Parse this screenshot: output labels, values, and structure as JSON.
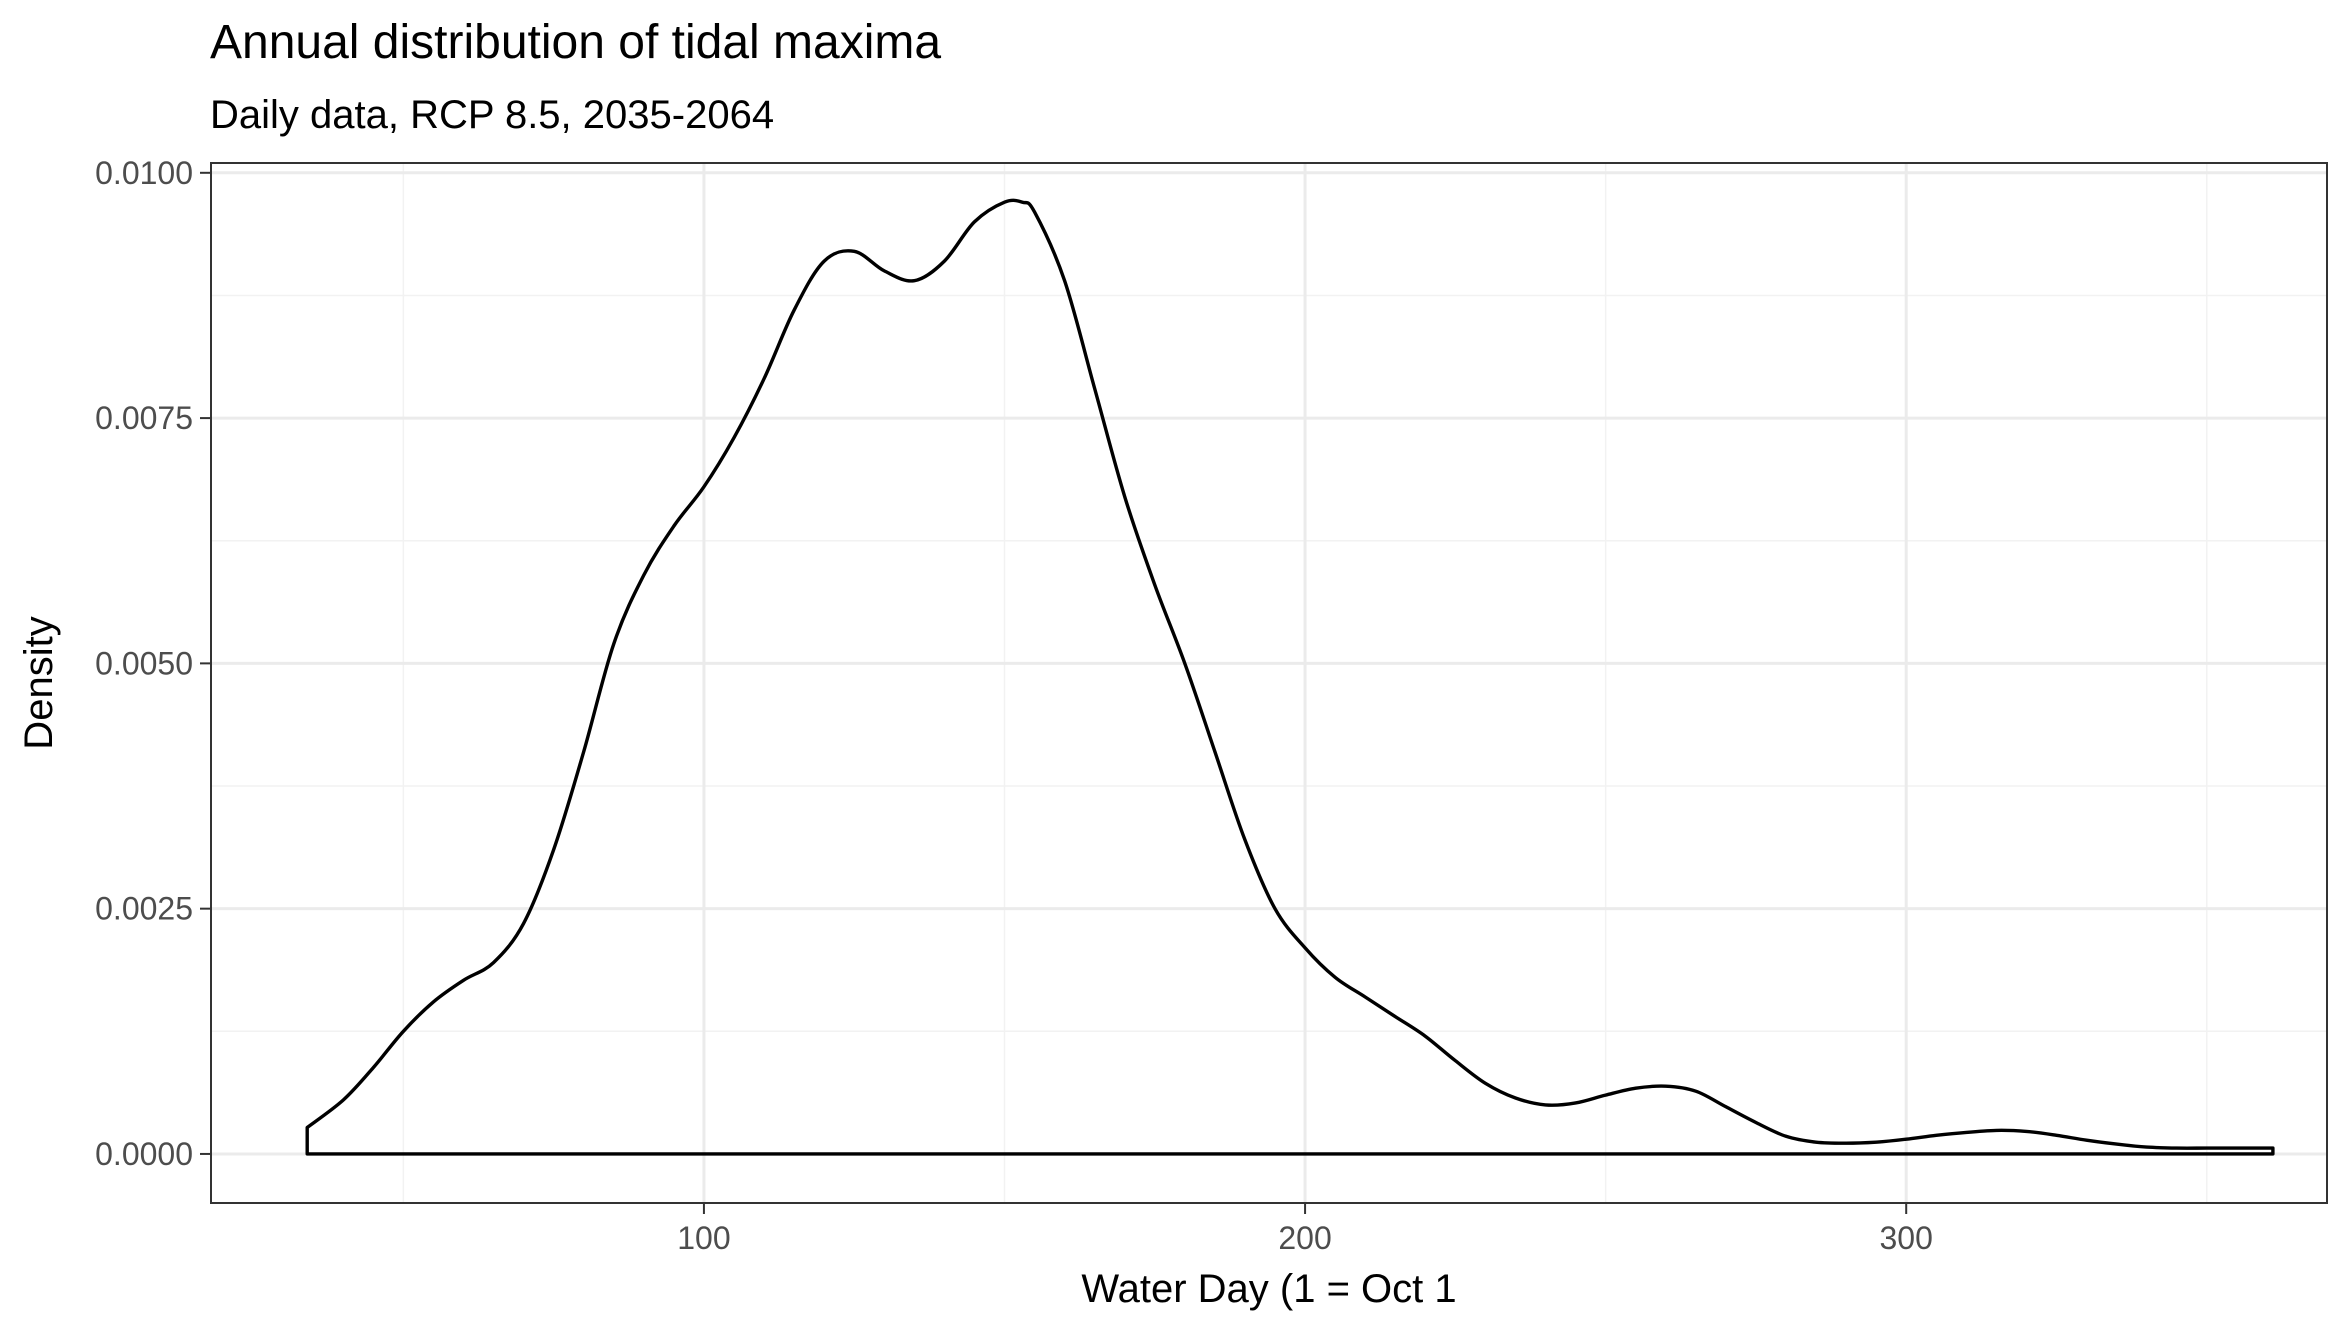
{
  "chart_data": {
    "type": "area",
    "title": "Annual distribution of tidal maxima",
    "subtitle": "Daily data, RCP 8.5, 2035-2064",
    "xlabel": "Water Day (1 = Oct 1",
    "ylabel": "Density",
    "xlim": [
      18,
      370
    ],
    "ylim": [
      -0.0005,
      0.0101
    ],
    "x_ticks": [
      100,
      200,
      300
    ],
    "x_tick_labels": [
      "100",
      "200",
      "300"
    ],
    "x_minor_ticks": [
      50,
      150,
      250,
      350
    ],
    "y_ticks": [
      0,
      0.0025,
      0.005,
      0.0075,
      0.01
    ],
    "y_tick_labels": [
      "0.0000",
      "0.0025",
      "0.0050",
      "0.0075",
      "0.0100"
    ],
    "y_minor_ticks": [
      0.00125,
      0.00375,
      0.00625,
      0.00875
    ],
    "grid": true,
    "legend": "none",
    "fill": "none",
    "line_color": "#000000",
    "x": [
      34,
      40,
      45,
      50,
      55,
      60,
      65,
      70,
      75,
      80,
      85,
      90,
      95,
      100,
      105,
      110,
      115,
      120,
      125,
      130,
      135,
      140,
      145,
      150,
      153,
      155,
      160,
      165,
      170,
      175,
      180,
      185,
      190,
      195,
      200,
      205,
      210,
      215,
      220,
      225,
      230,
      235,
      240,
      245,
      250,
      255,
      260,
      265,
      270,
      275,
      280,
      285,
      290,
      295,
      300,
      305,
      310,
      315,
      320,
      325,
      330,
      335,
      340,
      345,
      350,
      355,
      361
    ],
    "y": [
      0.00027,
      0.00055,
      0.00088,
      0.00125,
      0.00155,
      0.00177,
      0.00195,
      0.00235,
      0.0031,
      0.0041,
      0.0052,
      0.0059,
      0.0064,
      0.0068,
      0.0073,
      0.0079,
      0.0086,
      0.0091,
      0.0092,
      0.009,
      0.0089,
      0.0091,
      0.0095,
      0.0097,
      0.0097,
      0.0096,
      0.0089,
      0.0078,
      0.0067,
      0.0058,
      0.005,
      0.0041,
      0.0032,
      0.0025,
      0.0021,
      0.0018,
      0.0016,
      0.0014,
      0.0012,
      0.00095,
      0.00072,
      0.00057,
      0.0005,
      0.00052,
      0.0006,
      0.00067,
      0.00069,
      0.00064,
      0.00048,
      0.00032,
      0.00018,
      0.00012,
      0.00011,
      0.00012,
      0.00015,
      0.00019,
      0.00022,
      0.00024,
      0.00023,
      0.00019,
      0.00014,
      0.0001,
      7e-05,
      6e-05,
      6e-05,
      6e-05,
      6e-05
    ]
  }
}
